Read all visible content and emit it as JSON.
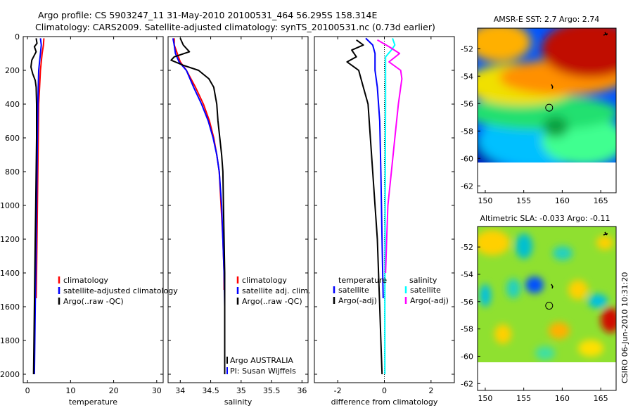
{
  "header": {
    "line1": "Argo profile: CS 5903247_11 31-May-2010 20100531_464 56.295S 158.314E",
    "line2": "Climatology: CARS2009. Satellite-adjusted climatology: synTS_20100531.nc (0.73d earlier)"
  },
  "colors": {
    "climatology": "#ff0000",
    "satellite": "#0000ff",
    "argo": "#000000",
    "sal_satellite": "#00ffff",
    "sal_argo": "#ff00ff"
  },
  "chart_data": [
    {
      "type": "line",
      "id": "temperature",
      "xlabel": "temperature",
      "ylabel": "",
      "xlim": [
        -1,
        31.5
      ],
      "ylim": [
        2050,
        0
      ],
      "xticks": [
        0,
        10,
        20,
        30
      ],
      "yticks": [
        0,
        200,
        400,
        600,
        800,
        1000,
        1200,
        1400,
        1600,
        1800,
        2000
      ],
      "legend": [
        "climatology",
        "satellite-adjusted climatology",
        "Argo(..raw -QC)"
      ],
      "series": [
        {
          "name": "climatology",
          "color": "#ff0000",
          "points": [
            [
              3.8,
              10
            ],
            [
              3.7,
              50
            ],
            [
              3.4,
              100
            ],
            [
              3.0,
              200
            ],
            [
              2.8,
              300
            ],
            [
              2.6,
              400
            ],
            [
              2.5,
              600
            ],
            [
              2.4,
              800
            ],
            [
              2.3,
              1000
            ],
            [
              2.2,
              1200
            ],
            [
              2.1,
              1400
            ],
            [
              2.0,
              1550
            ]
          ]
        },
        {
          "name": "satellite-adjusted climatology",
          "color": "#0000ff",
          "points": [
            [
              3.0,
              10
            ],
            [
              3.2,
              50
            ],
            [
              3.0,
              100
            ],
            [
              2.6,
              200
            ],
            [
              2.5,
              300
            ],
            [
              2.4,
              400
            ],
            [
              2.3,
              600
            ],
            [
              2.2,
              800
            ],
            [
              2.1,
              1000
            ],
            [
              2.0,
              1200
            ],
            [
              1.9,
              1400
            ],
            [
              1.8,
              1600
            ],
            [
              1.7,
              1800
            ],
            [
              1.6,
              2000
            ]
          ]
        },
        {
          "name": "Argo(..raw -QC)",
          "color": "#000000",
          "points": [
            [
              2.0,
              10
            ],
            [
              2.2,
              40
            ],
            [
              1.6,
              60
            ],
            [
              2.0,
              90
            ],
            [
              1.0,
              140
            ],
            [
              0.8,
              180
            ],
            [
              1.2,
              220
            ],
            [
              1.8,
              260
            ],
            [
              2.0,
              300
            ],
            [
              2.1,
              400
            ],
            [
              2.1,
              600
            ],
            [
              2.0,
              800
            ],
            [
              1.9,
              1000
            ],
            [
              1.8,
              1200
            ],
            [
              1.7,
              1400
            ],
            [
              1.6,
              1600
            ],
            [
              1.5,
              1800
            ],
            [
              1.4,
              2000
            ]
          ]
        }
      ]
    },
    {
      "type": "line",
      "id": "salinity",
      "xlabel": "salinity",
      "ylabel": "",
      "xlim": [
        33.8,
        36.1
      ],
      "ylim": [
        2050,
        0
      ],
      "xticks": [
        34,
        34.5,
        35,
        35.5,
        36
      ],
      "xticklabels": [
        "34",
        "34.5",
        "35",
        "35.5",
        "36"
      ],
      "legend": [
        "climatology",
        "satellite adj. clim.",
        "Argo(..raw -QC)"
      ],
      "annotations": [
        "Argo AUSTRALIA",
        "PI: Susan Wijffels"
      ],
      "series": [
        {
          "name": "climatology",
          "color": "#ff0000",
          "points": [
            [
              33.9,
              10
            ],
            [
              33.9,
              50
            ],
            [
              33.95,
              100
            ],
            [
              34.0,
              150
            ],
            [
              34.1,
              200
            ],
            [
              34.25,
              300
            ],
            [
              34.38,
              400
            ],
            [
              34.48,
              500
            ],
            [
              34.55,
              600
            ],
            [
              34.6,
              700
            ],
            [
              34.64,
              800
            ],
            [
              34.67,
              1000
            ],
            [
              34.7,
              1200
            ],
            [
              34.72,
              1400
            ],
            [
              34.72,
              1500
            ]
          ]
        },
        {
          "name": "satellite adj. clim.",
          "color": "#0000ff",
          "points": [
            [
              33.88,
              10
            ],
            [
              33.9,
              50
            ],
            [
              33.92,
              100
            ],
            [
              33.98,
              150
            ],
            [
              34.1,
              200
            ],
            [
              34.22,
              300
            ],
            [
              34.35,
              400
            ],
            [
              34.46,
              500
            ],
            [
              34.54,
              600
            ],
            [
              34.6,
              700
            ],
            [
              34.64,
              800
            ],
            [
              34.68,
              1000
            ],
            [
              34.7,
              1200
            ],
            [
              34.72,
              1400
            ],
            [
              34.73,
              1600
            ],
            [
              34.73,
              1800
            ],
            [
              34.73,
              2000
            ]
          ]
        },
        {
          "name": "Argo(..raw -QC)",
          "color": "#000000",
          "points": [
            [
              34.0,
              10
            ],
            [
              34.05,
              50
            ],
            [
              34.15,
              90
            ],
            [
              33.9,
              120
            ],
            [
              33.85,
              140
            ],
            [
              34.05,
              170
            ],
            [
              34.3,
              200
            ],
            [
              34.47,
              250
            ],
            [
              34.55,
              300
            ],
            [
              34.6,
              400
            ],
            [
              34.62,
              500
            ],
            [
              34.65,
              600
            ],
            [
              34.68,
              700
            ],
            [
              34.7,
              800
            ],
            [
              34.71,
              1000
            ],
            [
              34.72,
              1200
            ],
            [
              34.73,
              1400
            ],
            [
              34.73,
              1600
            ],
            [
              34.73,
              1800
            ],
            [
              34.73,
              2000
            ]
          ]
        }
      ]
    },
    {
      "type": "line",
      "id": "difference",
      "xlabel": "difference from climatology",
      "ylabel": "",
      "xlim": [
        -3,
        3
      ],
      "ylim": [
        2050,
        0
      ],
      "xticks": [
        -2,
        0,
        2
      ],
      "legend_left_title": "temperature",
      "legend_right_title": "salinity",
      "legend": [
        "satellite",
        "Argo(-adj)",
        "satellite",
        "Argo(-adj)"
      ],
      "series": [
        {
          "name": "temperature satellite",
          "color": "#0000ff",
          "points": [
            [
              -0.8,
              10
            ],
            [
              -0.5,
              50
            ],
            [
              -0.4,
              100
            ],
            [
              -0.4,
              200
            ],
            [
              -0.3,
              300
            ],
            [
              -0.2,
              500
            ],
            [
              -0.15,
              800
            ],
            [
              -0.1,
              1200
            ],
            [
              -0.05,
              1550
            ]
          ]
        },
        {
          "name": "temperature Argo(-adj)",
          "color": "#000000",
          "points": [
            [
              -1.2,
              20
            ],
            [
              -0.9,
              50
            ],
            [
              -1.4,
              80
            ],
            [
              -1.2,
              120
            ],
            [
              -1.6,
              150
            ],
            [
              -1.1,
              200
            ],
            [
              -0.9,
              300
            ],
            [
              -0.7,
              400
            ],
            [
              -0.6,
              600
            ],
            [
              -0.5,
              800
            ],
            [
              -0.4,
              1000
            ],
            [
              -0.3,
              1200
            ],
            [
              -0.25,
              1400
            ],
            [
              -0.2,
              1600
            ],
            [
              -0.15,
              1800
            ],
            [
              -0.1,
              2000
            ]
          ]
        },
        {
          "name": "salinity satellite",
          "color": "#00ffff",
          "points": [
            [
              0.35,
              10
            ],
            [
              0.45,
              50
            ],
            [
              0.3,
              80
            ],
            [
              0.05,
              120
            ],
            [
              0.05,
              200
            ],
            [
              0.05,
              400
            ],
            [
              0.04,
              800
            ],
            [
              0.03,
              1200
            ],
            [
              0.02,
              1600
            ],
            [
              0.02,
              2000
            ]
          ]
        },
        {
          "name": "salinity Argo(-adj)",
          "color": "#ff00ff",
          "points": [
            [
              -0.3,
              20
            ],
            [
              0.2,
              60
            ],
            [
              0.65,
              100
            ],
            [
              0.2,
              150
            ],
            [
              0.7,
              200
            ],
            [
              0.75,
              250
            ],
            [
              0.7,
              300
            ],
            [
              0.6,
              400
            ],
            [
              0.45,
              600
            ],
            [
              0.3,
              800
            ],
            [
              0.15,
              1000
            ],
            [
              0.1,
              1200
            ],
            [
              0.05,
              1400
            ]
          ]
        }
      ]
    },
    {
      "type": "heatmap",
      "id": "sst_map",
      "title": "AMSR-E SST: 2.7 Argo: 2.74",
      "xlim": [
        149,
        167
      ],
      "ylim": [
        -62.5,
        -50.5
      ],
      "xticks": [
        150,
        155,
        160,
        165
      ],
      "yticks": [
        -52,
        -54,
        -56,
        -58,
        -60,
        -62
      ],
      "profile_position": [
        158.3,
        -56.3
      ]
    },
    {
      "type": "heatmap",
      "id": "sla_map",
      "title": "Altimetric SLA: -0.033 Argo: -0.11",
      "xlim": [
        149,
        167
      ],
      "ylim": [
        -62.5,
        -50.5
      ],
      "xticks": [
        150,
        155,
        160,
        165
      ],
      "yticks": [
        -52,
        -54,
        -56,
        -58,
        -60,
        -62
      ],
      "profile_position": [
        158.3,
        -56.3
      ]
    }
  ],
  "footer": {
    "stamp": "CSIRO 06-Jun-2010 10:31:20"
  }
}
